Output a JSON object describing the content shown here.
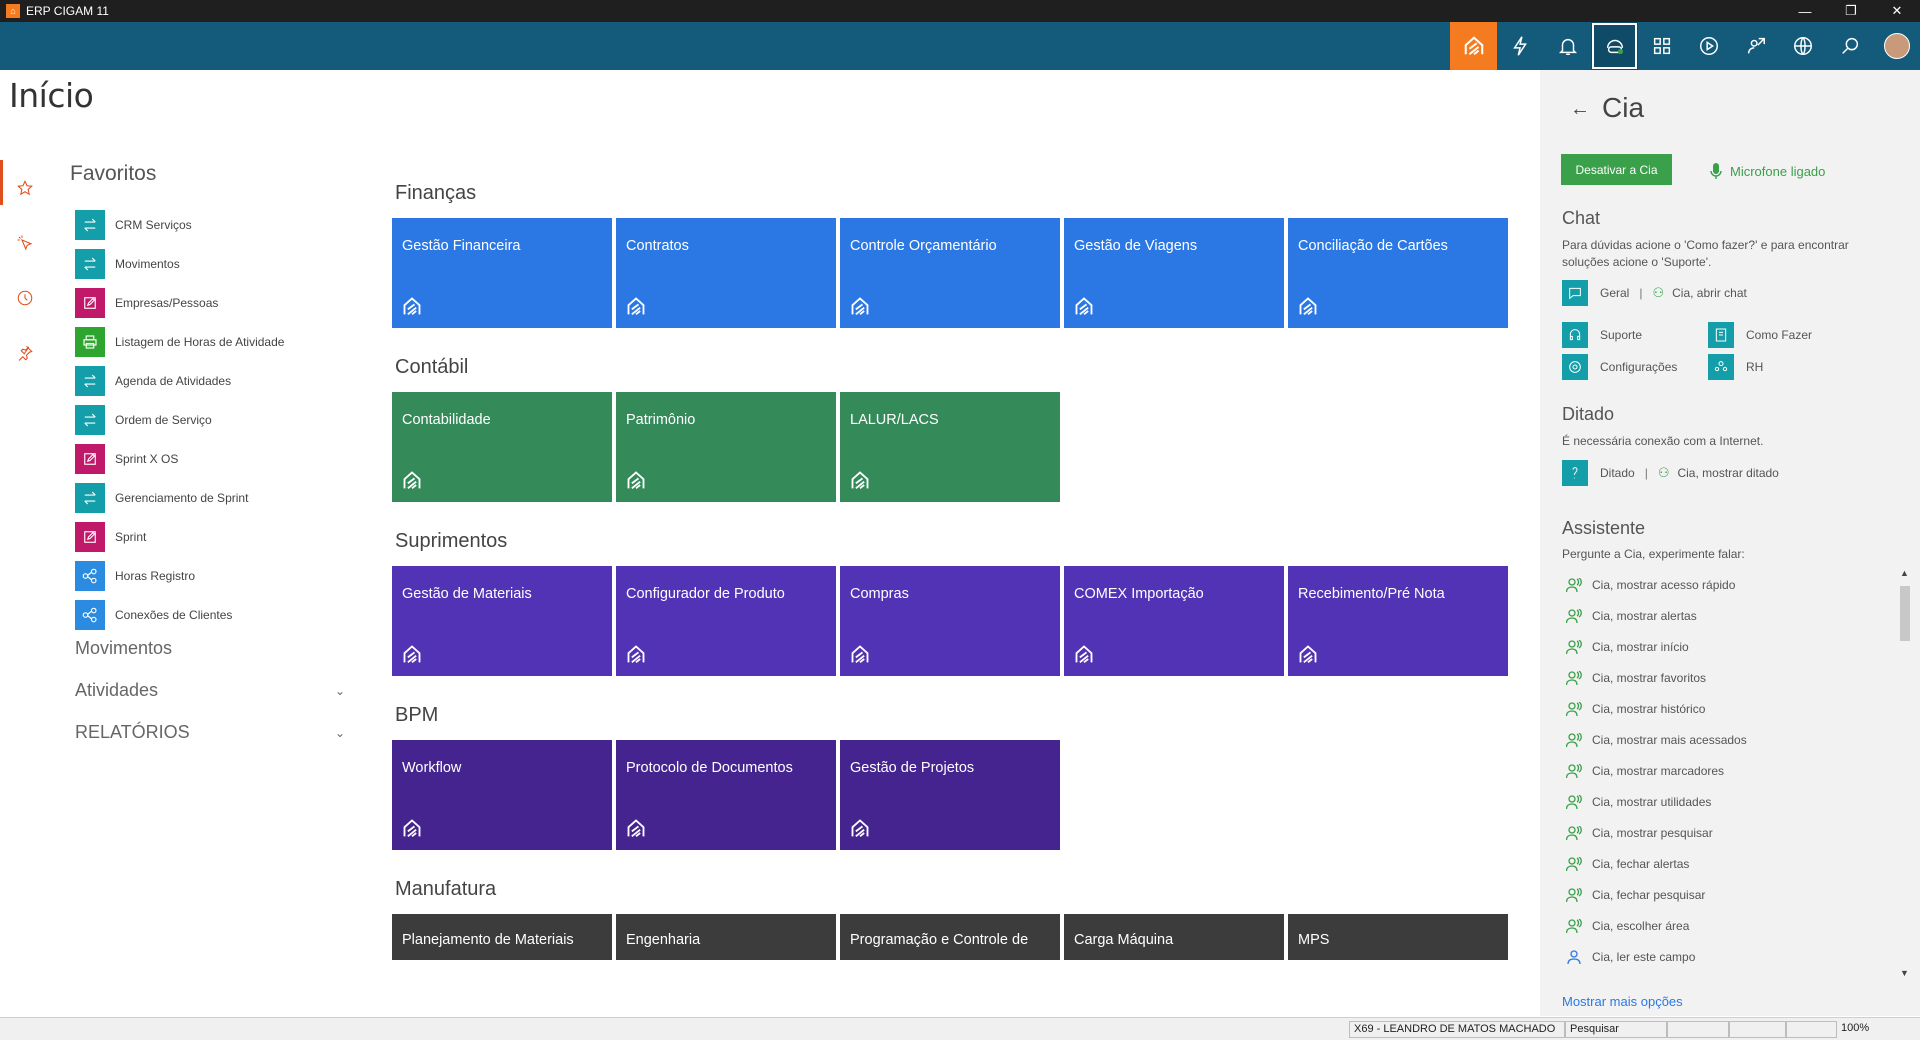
{
  "window": {
    "title": "ERP CIGAM 11"
  },
  "page": {
    "title": "Início"
  },
  "favorites": {
    "title": "Favoritos",
    "items": [
      {
        "label": "CRM Serviços",
        "icon": "arrows-icon",
        "color": "teal"
      },
      {
        "label": "Movimentos",
        "icon": "arrows-icon",
        "color": "teal"
      },
      {
        "label": "Empresas/Pessoas",
        "icon": "edit-icon",
        "color": "pink"
      },
      {
        "label": "Listagem de Horas de Atividade",
        "icon": "print-icon",
        "color": "green"
      },
      {
        "label": "Agenda de Atividades",
        "icon": "arrows-icon",
        "color": "teal"
      },
      {
        "label": "Ordem de Serviço",
        "icon": "arrows-icon",
        "color": "teal"
      },
      {
        "label": "Sprint X OS",
        "icon": "edit-icon",
        "color": "pink"
      },
      {
        "label": "Gerenciamento de Sprint",
        "icon": "arrows-icon",
        "color": "teal"
      },
      {
        "label": "Sprint",
        "icon": "edit-icon",
        "color": "pink"
      },
      {
        "label": "Horas Registro",
        "icon": "share-icon",
        "color": "blue"
      },
      {
        "label": "Conexões de Clientes",
        "icon": "share-icon",
        "color": "blue"
      }
    ]
  },
  "menu": {
    "movimentos": "Movimentos",
    "atividades": "Atividades",
    "relatorios": "RELATÓRIOS"
  },
  "sections": {
    "financas": {
      "title": "Finanças",
      "tiles": [
        "Gestão Financeira",
        "Contratos",
        "Controle Orçamentário",
        "Gestão de Viagens",
        "Conciliação de Cartões"
      ]
    },
    "contabil": {
      "title": "Contábil",
      "tiles": [
        "Contabilidade",
        "Patrimônio",
        "LALUR/LACS"
      ]
    },
    "suprimentos": {
      "title": "Suprimentos",
      "tiles": [
        "Gestão de Materiais",
        "Configurador de Produto",
        "Compras",
        "COMEX Importação",
        "Recebimento/Pré Nota"
      ]
    },
    "bpm": {
      "title": "BPM",
      "tiles": [
        "Workflow",
        "Protocolo de Documentos",
        "Gestão de Projetos"
      ]
    },
    "manufatura": {
      "title": "Manufatura",
      "tiles": [
        "Planejamento de Materiais",
        "Engenharia",
        "Programação e Controle de",
        "Carga Máquina",
        "MPS"
      ]
    }
  },
  "cia": {
    "back": "←",
    "title": "Cia",
    "deactivate": "Desativar a Cia",
    "mic": "Microfone ligado",
    "chat": {
      "title": "Chat",
      "text": "Para dúvidas acione o 'Como fazer?' e para encontrar soluções acione o 'Suporte'.",
      "geral": "Geral",
      "sep": "|",
      "abrir": "Cia, abrir chat",
      "suporte": "Suporte",
      "como_fazer": "Como Fazer",
      "config": "Configurações",
      "rh": "RH"
    },
    "ditado": {
      "title": "Ditado",
      "text": "É necessária conexão com a Internet.",
      "label": "Ditado",
      "sep": "|",
      "cmd": "Cia, mostrar ditado"
    },
    "assistente": {
      "title": "Assistente",
      "text": "Pergunte a Cia, experimente falar:",
      "commands": [
        "Cia, mostrar acesso rápido",
        "Cia, mostrar alertas",
        "Cia, mostrar início",
        "Cia, mostrar favoritos",
        "Cia, mostrar histórico",
        "Cia, mostrar mais acessados",
        "Cia, mostrar marcadores",
        "Cia, mostrar utilidades",
        "Cia, mostrar pesquisar",
        "Cia, fechar alertas",
        "Cia, fechar pesquisar",
        "Cia, escolher área",
        "Cia, ler este campo"
      ],
      "more": "Mostrar mais opções"
    }
  },
  "status": {
    "user": "X69 - LEANDRO DE  MATOS MACHADO",
    "mode": "Pesquisar",
    "zoom": "100%"
  },
  "colors": {
    "nav": "#145a7a",
    "home": "#f47b20",
    "financas": "#2b78e4",
    "contabil": "#358a5a",
    "suprimentos": "#5232b5",
    "bpm": "#45248f",
    "manufatura": "#3c3c3c",
    "cia_green": "#3aa04a"
  }
}
